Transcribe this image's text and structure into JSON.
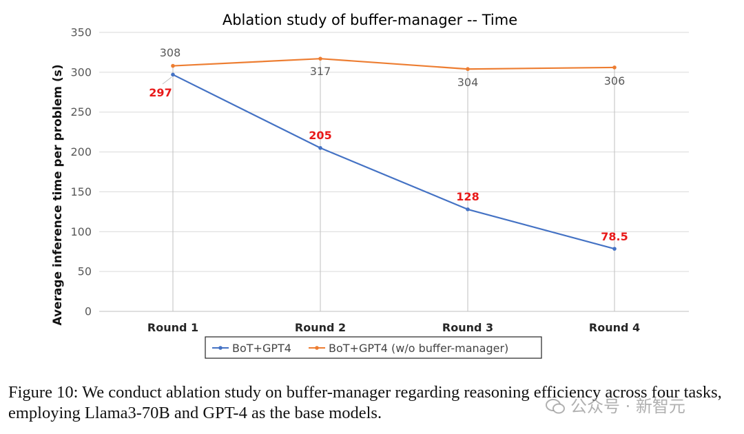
{
  "chart_data": {
    "type": "line",
    "title": "Ablation study of buffer-manager -- Time",
    "xlabel": "",
    "ylabel": "Average inference time per problem (s)",
    "categories": [
      "Round 1",
      "Round 2",
      "Round 3",
      "Round 4"
    ],
    "ylim": [
      0,
      350
    ],
    "yticks": [
      0,
      50,
      100,
      150,
      200,
      250,
      300,
      350
    ],
    "grid": true,
    "legend_position": "bottom",
    "series": [
      {
        "name": "BoT+GPT4",
        "values": [
          297,
          205,
          128,
          78.5
        ],
        "labels": [
          "297",
          "205",
          "128",
          "78.5"
        ],
        "color": "#4472c4",
        "label_color": "#e81919"
      },
      {
        "name": "BoT+GPT4 (w/o buffer-manager)",
        "values": [
          308,
          317,
          304,
          306
        ],
        "labels": [
          "308",
          "317",
          "304",
          "306"
        ],
        "color": "#ed7d31",
        "label_color": "#595959"
      }
    ]
  },
  "caption": "Figure 10: We conduct ablation study on buffer-manager regarding reasoning efficiency across four tasks, employing Llama3-70B and GPT-4 as the base models.",
  "watermark": "公众号 · 新智元"
}
